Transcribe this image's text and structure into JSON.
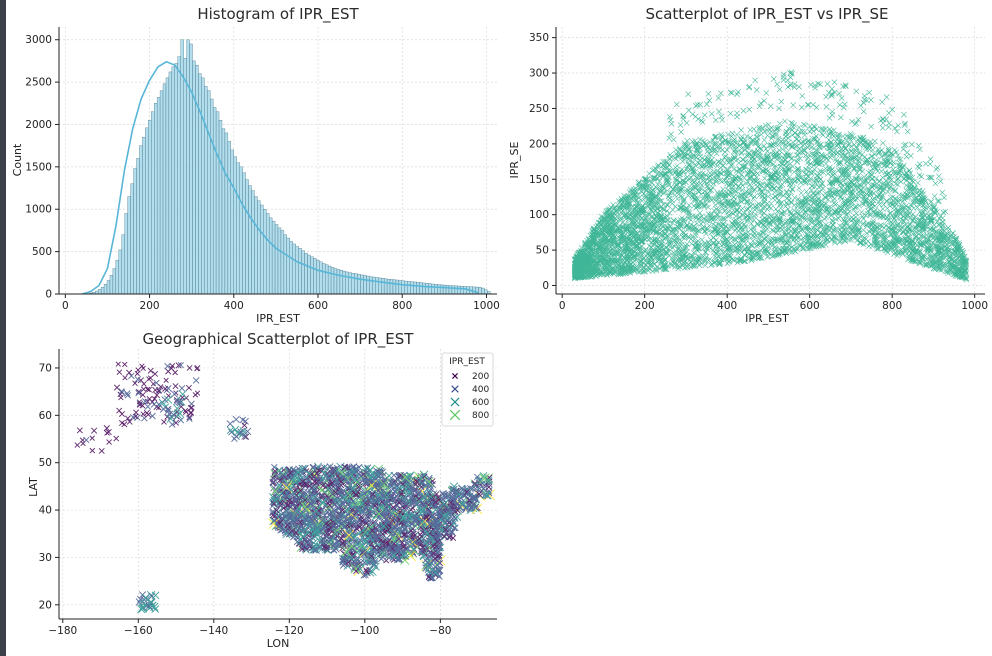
{
  "colors": {
    "hist_fill": "#a6d8ea",
    "hist_edge": "#3f6f80",
    "kde": "#58b6d8",
    "scatter": "#12a57f",
    "viridis": [
      "#440154",
      "#3b528b",
      "#21918c",
      "#5ec962",
      "#fde725"
    ]
  },
  "chart_data": [
    {
      "type": "bar",
      "title": "Histogram of IPR_EST",
      "xlabel": "IPR_EST",
      "ylabel": "Count",
      "xlim": [
        -15,
        1025
      ],
      "ylim": [
        0,
        3150
      ],
      "xticks": [
        0,
        200,
        400,
        600,
        800,
        1000
      ],
      "yticks": [
        0,
        500,
        1000,
        1500,
        2000,
        2500,
        3000
      ],
      "grid": true,
      "bins": {
        "start": 50,
        "width": 7,
        "counts": [
          5,
          12,
          20,
          35,
          55,
          80,
          115,
          160,
          220,
          300,
          400,
          520,
          700,
          950,
          1150,
          1300,
          1480,
          1600,
          1750,
          1850,
          1960,
          2050,
          2150,
          2250,
          2320,
          2400,
          2480,
          2550,
          2620,
          2680,
          2720,
          2800,
          3000,
          2780,
          3000,
          2950,
          2750,
          2700,
          2600,
          2550,
          2450,
          2400,
          2300,
          2200,
          2150,
          2050,
          1950,
          1900,
          1800,
          1700,
          1620,
          1550,
          1500,
          1430,
          1350,
          1280,
          1220,
          1150,
          1100,
          1050,
          1000,
          950,
          900,
          860,
          820,
          780,
          750,
          700,
          660,
          620,
          590,
          560,
          540,
          510,
          480,
          460,
          440,
          420,
          400,
          380,
          360,
          345,
          330,
          315,
          300,
          290,
          280,
          270,
          260,
          252,
          245,
          240,
          232,
          225,
          220,
          212,
          205,
          200,
          195,
          190,
          185,
          180,
          175,
          172,
          168,
          165,
          160,
          156,
          152,
          148,
          145,
          142,
          138,
          135,
          130,
          126,
          122,
          118,
          115,
          112,
          108,
          105,
          102,
          100,
          98,
          96,
          94,
          92,
          90,
          88,
          86,
          84,
          82,
          80,
          70,
          50,
          30
        ]
      },
      "kde": {
        "x": [
          40,
          60,
          80,
          100,
          120,
          140,
          160,
          180,
          200,
          220,
          240,
          260,
          280,
          300,
          320,
          340,
          360,
          380,
          400,
          420,
          440,
          460,
          480,
          500,
          550,
          600,
          650,
          700,
          750,
          800,
          850,
          900,
          950,
          980
        ],
        "y": [
          0,
          30,
          100,
          300,
          800,
          1450,
          1950,
          2300,
          2520,
          2680,
          2740,
          2700,
          2560,
          2380,
          2150,
          1900,
          1650,
          1420,
          1250,
          1060,
          900,
          760,
          640,
          540,
          380,
          280,
          220,
          175,
          140,
          110,
          90,
          75,
          60,
          15
        ]
      }
    },
    {
      "type": "scatter",
      "title": "Scatterplot of IPR_EST vs IPR_SE",
      "xlabel": "IPR_EST",
      "ylabel": "IPR_SE",
      "xlim": [
        -15,
        1025
      ],
      "ylim": [
        -12,
        365
      ],
      "xticks": [
        0,
        200,
        400,
        600,
        800,
        1000
      ],
      "yticks": [
        0,
        50,
        100,
        150,
        200,
        250,
        300,
        350
      ],
      "grid": true,
      "marker": "x"
    },
    {
      "type": "scatter",
      "title": "Geographical Scatterplot of IPR_EST",
      "xlabel": "LON",
      "ylabel": "LAT",
      "xlim": [
        -181,
        -65
      ],
      "ylim": [
        17,
        74
      ],
      "xticks": [
        -180,
        -160,
        -140,
        -120,
        -100,
        -80
      ],
      "yticks": [
        20,
        30,
        40,
        50,
        60,
        70
      ],
      "grid": true,
      "marker": "x",
      "legend": {
        "title": "IPR_EST",
        "placement": "top-right",
        "entries": [
          "200",
          "400",
          "600",
          "800"
        ]
      }
    }
  ]
}
